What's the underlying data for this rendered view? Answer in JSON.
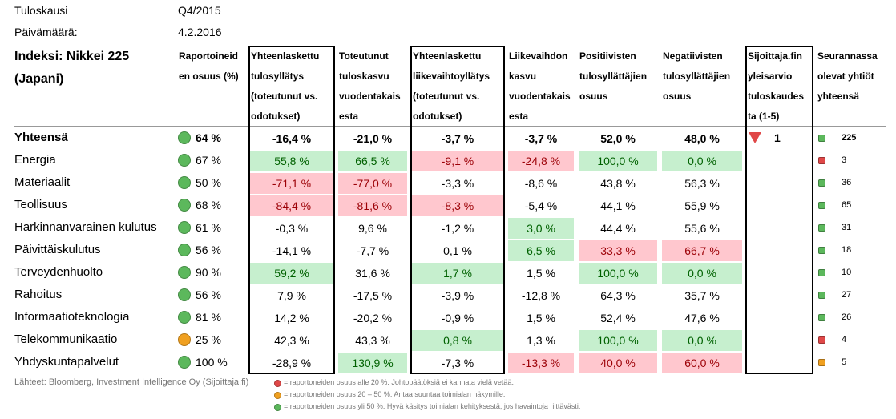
{
  "meta": [
    {
      "label": "Tuloskausi",
      "value": "Q4/2015"
    },
    {
      "label": "Päivämäärä:",
      "value": "4.2.2016"
    }
  ],
  "index_title": [
    "Indeksi: Nikkei 225",
    "(Japani)"
  ],
  "headers": [
    [
      "Raportoineid",
      "en osuus (%)"
    ],
    [
      "Yhteenlaskettu",
      "tulosyllätys",
      "(toteutunut vs.",
      "odotukset)"
    ],
    [
      "Toteutunut",
      "tuloskasvu",
      "vuodentakais",
      "esta"
    ],
    [
      "Yhteenlaskettu",
      "liikevaihtoyllätys",
      "(toteutunut vs.",
      "odotukset)"
    ],
    [
      "Liikevaihdon",
      "kasvu",
      "vuodentakais",
      "esta"
    ],
    [
      "Positiivisten",
      "tulosyllättäjien",
      "osuus"
    ],
    [
      "Negatiivisten",
      "tulosyllättäjien",
      "osuus"
    ],
    [
      "Sijoittaja.fin",
      "yleisarvio",
      "tuloskaudes",
      "ta (1-5)"
    ],
    [
      "Seurannassa",
      "olevat yhtiöt",
      "yhteensä"
    ]
  ],
  "rows": [
    {
      "name": "Yhteensä",
      "status": "green",
      "share": "64 %",
      "values": [
        "-16,4 %",
        "-21,0 %",
        "-3,7 %",
        "-3,7 %",
        "52,0 %",
        "48,0 %"
      ],
      "highlight": [
        null,
        null,
        null,
        null,
        null,
        null
      ],
      "rating": "1",
      "rating_trend": "down",
      "count": "225",
      "count_status": "green"
    },
    {
      "name": "Energia",
      "status": "green",
      "share": "67 %",
      "values": [
        "55,8 %",
        "66,5 %",
        "-9,1 %",
        "-24,8 %",
        "100,0 %",
        "0,0 %"
      ],
      "highlight": [
        "green",
        "green",
        "red",
        "red",
        "green",
        "green"
      ],
      "count": "3",
      "count_status": "red"
    },
    {
      "name": "Materiaalit",
      "status": "green",
      "share": "50 %",
      "values": [
        "-71,1 %",
        "-77,0 %",
        "-3,3 %",
        "-8,6 %",
        "43,8 %",
        "56,3 %"
      ],
      "highlight": [
        "red",
        "red",
        null,
        null,
        null,
        null
      ],
      "count": "36",
      "count_status": "green"
    },
    {
      "name": "Teollisuus",
      "status": "green",
      "share": "68 %",
      "values": [
        "-84,4 %",
        "-81,6 %",
        "-8,3 %",
        "-5,4 %",
        "44,1 %",
        "55,9 %"
      ],
      "highlight": [
        "red",
        "red",
        "red",
        null,
        null,
        null
      ],
      "count": "65",
      "count_status": "green"
    },
    {
      "name": "Harkinnanvarainen kulutus",
      "status": "green",
      "share": "61 %",
      "values": [
        "-0,3 %",
        "9,6 %",
        "-1,2 %",
        "3,0 %",
        "44,4 %",
        "55,6 %"
      ],
      "highlight": [
        null,
        null,
        null,
        "green",
        null,
        null
      ],
      "count": "31",
      "count_status": "green"
    },
    {
      "name": "Päivittäiskulutus",
      "status": "green",
      "share": "56 %",
      "values": [
        "-14,1 %",
        "-7,7 %",
        "0,1 %",
        "6,5 %",
        "33,3 %",
        "66,7 %"
      ],
      "highlight": [
        null,
        null,
        null,
        "green",
        "red",
        "red"
      ],
      "count": "18",
      "count_status": "green"
    },
    {
      "name": "Terveydenhuolto",
      "status": "green",
      "share": "90 %",
      "values": [
        "59,2 %",
        "31,6 %",
        "1,7 %",
        "1,5 %",
        "100,0 %",
        "0,0 %"
      ],
      "highlight": [
        "green",
        null,
        "green",
        null,
        "green",
        "green"
      ],
      "count": "10",
      "count_status": "green"
    },
    {
      "name": "Rahoitus",
      "status": "green",
      "share": "56 %",
      "values": [
        "7,9 %",
        "-17,5 %",
        "-3,9 %",
        "-12,8 %",
        "64,3 %",
        "35,7 %"
      ],
      "highlight": [
        null,
        null,
        null,
        null,
        null,
        null
      ],
      "count": "27",
      "count_status": "green"
    },
    {
      "name": "Informaatioteknologia",
      "status": "green",
      "share": "81 %",
      "values": [
        "14,2 %",
        "-20,2 %",
        "-0,9 %",
        "1,5 %",
        "52,4 %",
        "47,6 %"
      ],
      "highlight": [
        null,
        null,
        null,
        null,
        null,
        null
      ],
      "count": "26",
      "count_status": "green"
    },
    {
      "name": "Telekommunikaatio",
      "status": "yellow",
      "share": "25 %",
      "values": [
        "42,3 %",
        "43,3 %",
        "0,8 %",
        "1,3 %",
        "100,0 %",
        "0,0 %"
      ],
      "highlight": [
        null,
        null,
        "green",
        null,
        "green",
        "green"
      ],
      "count": "4",
      "count_status": "red"
    },
    {
      "name": "Yhdyskuntapalvelut",
      "status": "green",
      "share": "100 %",
      "values": [
        "-28,9 %",
        "130,9 %",
        "-7,3 %",
        "-13,3 %",
        "40,0 %",
        "60,0 %"
      ],
      "highlight": [
        null,
        "green",
        null,
        "red",
        "red",
        "red"
      ],
      "count": "5",
      "count_status": "yellow"
    }
  ],
  "source": "Lähteet: Bloomberg, Investment Intelligence Oy (Sijoittaja.fi)",
  "legend": [
    {
      "status": "red",
      "text": "= raportoneiden osuus alle 20 %. Johtopäätöksiä ei kannata vielä vetää."
    },
    {
      "status": "yellow",
      "text": "= raportoneiden osuus 20 – 50 %. Antaa suuntaa toimialan näkymille."
    },
    {
      "status": "green",
      "text": "= raportoneiden osuus yli 50 %. Hyvä käsitys toimialan kehityksestä, jos havaintoja riittävästi."
    }
  ]
}
